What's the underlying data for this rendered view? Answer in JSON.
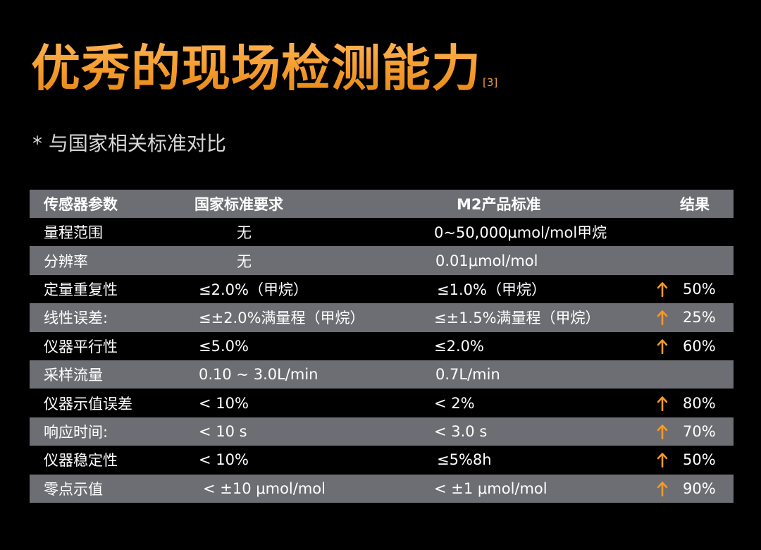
{
  "page": {
    "title": "优秀的现场检测能力",
    "title_ref": "[3]",
    "subtitle": "* 与国家相关标准对比"
  },
  "colors": {
    "accent_orange": "#f39a2a",
    "row_gray": "#6d6e73",
    "background": "#000000"
  },
  "table": {
    "headers": [
      "传感器参数",
      "国家标准要求",
      "M2产品标准",
      "结果"
    ],
    "rows": [
      {
        "param": "量程范围",
        "national": "无",
        "product": "0~50,000μmol/mol甲烷",
        "improved": false,
        "result": ""
      },
      {
        "param": "分辨率",
        "national": "无",
        "product": "0.01μmol/mol",
        "improved": false,
        "result": ""
      },
      {
        "param": "定量重复性",
        "national": "≤2.0%（甲烷）",
        "product": "≤1.0%（甲烷）",
        "improved": true,
        "result": "50%"
      },
      {
        "param": "线性误差:",
        "national": "≤±2.0%满量程（甲烷）",
        "product": "≤±1.5%满量程（甲烷）",
        "improved": true,
        "result": "25%"
      },
      {
        "param": "仪器平行性",
        "national": "≤5.0%",
        "product": "≤2.0%",
        "improved": true,
        "result": "60%"
      },
      {
        "param": "采样流量",
        "national": "0.10 ~ 3.0L/min",
        "product": "0.7L/min",
        "improved": false,
        "result": ""
      },
      {
        "param": "仪器示值误差",
        "national": "< 10%",
        "product": "< 2%",
        "improved": true,
        "result": "80%"
      },
      {
        "param": "响应时间:",
        "national": "< 10 s",
        "product": "< 3.0 s",
        "improved": true,
        "result": "70%"
      },
      {
        "param": "仪器稳定性",
        "national": "< 10%",
        "product": "≤5%8h",
        "improved": true,
        "result": "50%"
      },
      {
        "param": "零点示值",
        "national": "< ±10 μmol/mol",
        "product": "< ±1 μmol/mol",
        "improved": true,
        "result": "90%"
      }
    ],
    "arrow_icon": "arrow-up-icon"
  }
}
